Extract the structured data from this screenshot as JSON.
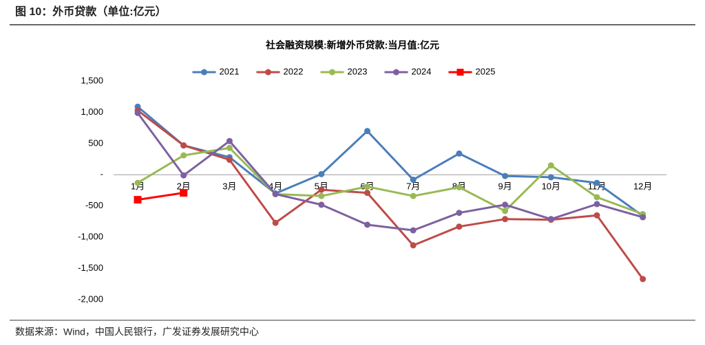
{
  "header": "图 10：外币贷款（单位:亿元）",
  "source": "数据来源：Wind，中国人民银行，广发证券发展研究中心",
  "chart_data": {
    "type": "line",
    "title": "社会融资规模:新增外币贷款:当月值:亿元",
    "categories": [
      "1月",
      "2月",
      "3月",
      "4月",
      "5月",
      "6月",
      "7月",
      "8月",
      "9月",
      "10月",
      "11月",
      "12月"
    ],
    "series": [
      {
        "name": "2021",
        "color": "#4a7ebb",
        "marker": "circle",
        "values": [
          1090,
          470,
          280,
          -300,
          10,
          700,
          -80,
          340,
          -20,
          -40,
          -130,
          -660
        ]
      },
      {
        "name": "2022",
        "color": "#be4b48",
        "marker": "circle",
        "values": [
          1030,
          470,
          240,
          -770,
          -240,
          -290,
          -1130,
          -830,
          -710,
          -720,
          -650,
          -1670
        ]
      },
      {
        "name": "2023",
        "color": "#98b954",
        "marker": "circle",
        "values": [
          -130,
          310,
          430,
          -310,
          -340,
          -190,
          -340,
          -200,
          -580,
          150,
          -360,
          -630
        ]
      },
      {
        "name": "2024",
        "color": "#7d60a0",
        "marker": "circle",
        "values": [
          990,
          -10,
          540,
          -310,
          -480,
          -800,
          -890,
          -610,
          -480,
          -710,
          -470,
          -680
        ]
      },
      {
        "name": "2025",
        "color": "#ff0000",
        "marker": "square",
        "values": [
          -400,
          -290,
          null,
          null,
          null,
          null,
          null,
          null,
          null,
          null,
          null,
          null
        ]
      }
    ],
    "ylim": [
      -2000,
      1500
    ],
    "yticks": [
      {
        "value": 1500,
        "label": "1,500"
      },
      {
        "value": 1000,
        "label": "1,000"
      },
      500,
      {
        "value": 0,
        "label": "-"
      },
      -500,
      {
        "value": -1000,
        "label": "-1,000"
      },
      {
        "value": -1500,
        "label": "-1,500"
      },
      {
        "value": -2000,
        "label": "-2,000"
      }
    ],
    "legend": "top"
  }
}
